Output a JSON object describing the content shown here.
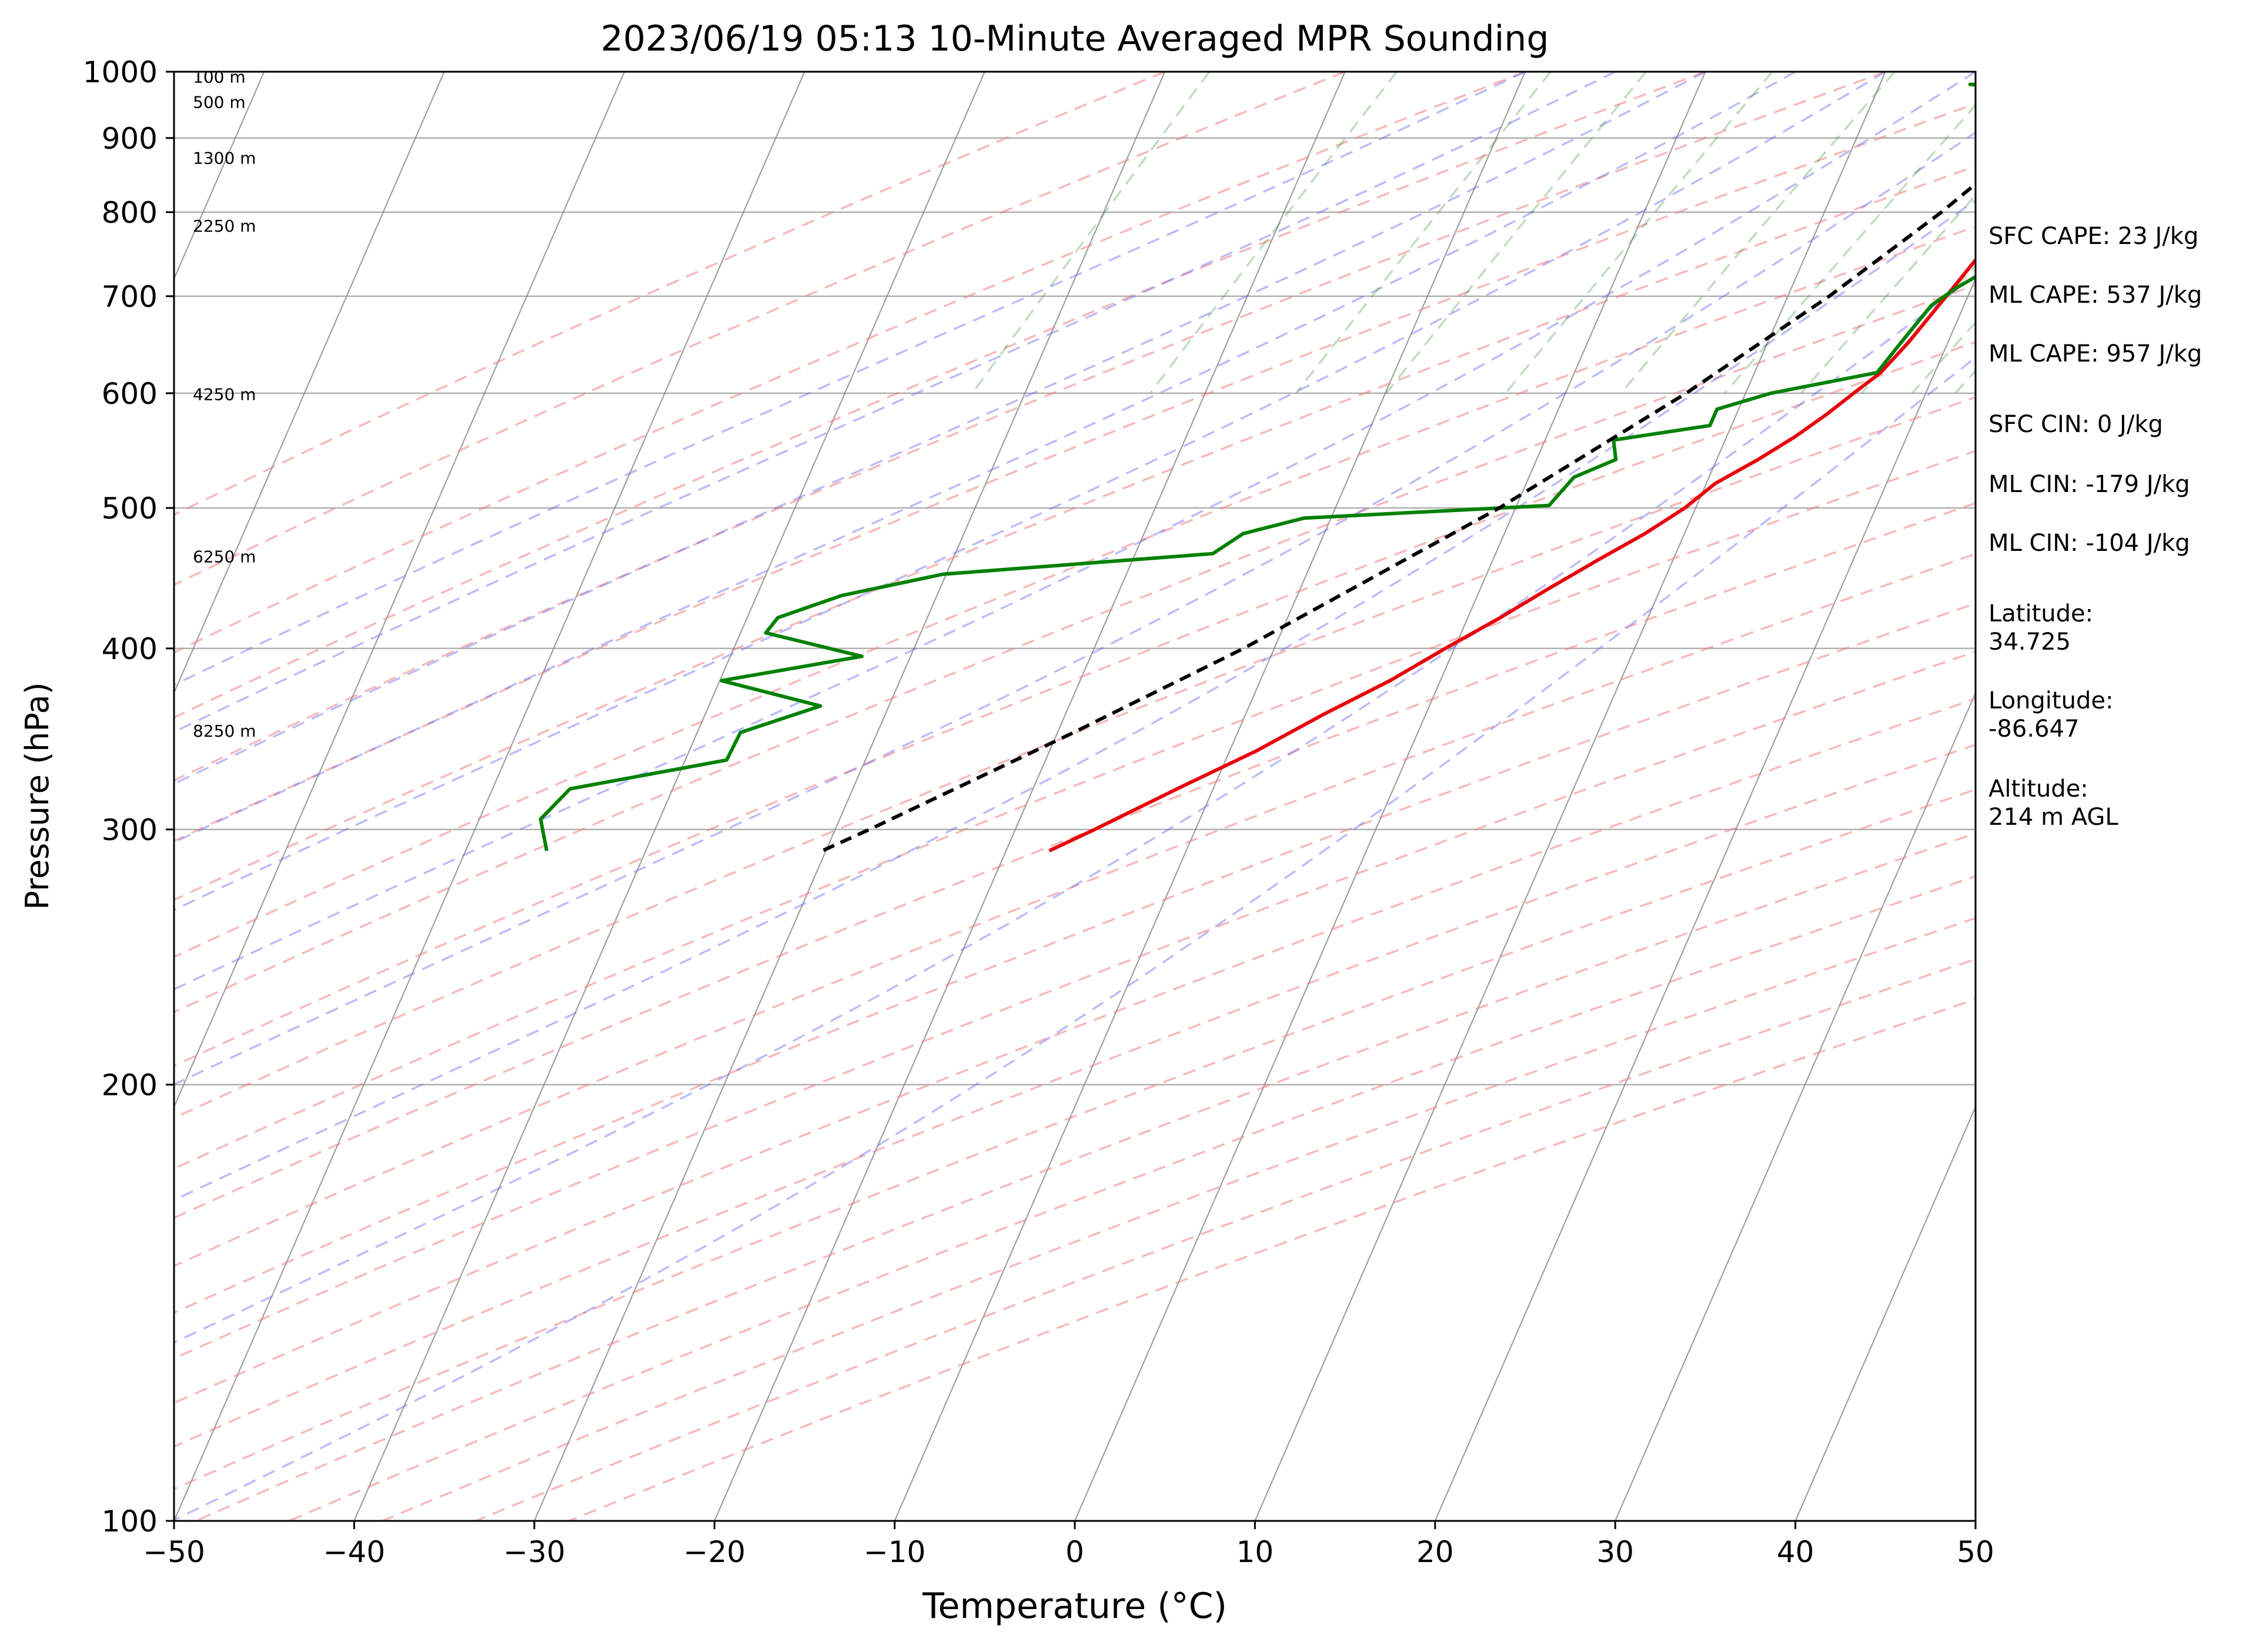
{
  "chart_data": {
    "type": "skew-t",
    "title": "2023/06/19 05:13 10-Minute Averaged MPR Sounding",
    "xlabel": "Temperature (°C)",
    "ylabel": "Pressure (hPa)",
    "xlim": [
      -50,
      50
    ],
    "ylim": [
      1000,
      100
    ],
    "x_ticks": [
      -50,
      -40,
      -30,
      -20,
      -10,
      0,
      10,
      20,
      30,
      40,
      50
    ],
    "x_tick_labels": [
      "−50",
      "−40",
      "−30",
      "−20",
      "−10",
      "0",
      "10",
      "20",
      "30",
      "40",
      "50"
    ],
    "y_ticks": [
      1000,
      900,
      800,
      700,
      600,
      500,
      400,
      300,
      200,
      100
    ],
    "y_tick_labels": [
      "1000",
      "900",
      "800",
      "700",
      "600",
      "500",
      "400",
      "300",
      "200",
      "100"
    ],
    "y_scale": "log",
    "grid": true,
    "height_labels": [
      {
        "text": "100 m",
        "p": 992
      },
      {
        "text": "500 m",
        "p": 953
      },
      {
        "text": "1300 m",
        "p": 872
      },
      {
        "text": "2250 m",
        "p": 783
      },
      {
        "text": "4250 m",
        "p": 599
      },
      {
        "text": "6250 m",
        "p": 463
      },
      {
        "text": "8250 m",
        "p": 351
      }
    ],
    "series": [
      {
        "role": "temperature",
        "color": "#e8000b",
        "points": [
          [
            1000,
            22.3
          ],
          [
            980,
            22.3
          ],
          [
            950,
            22
          ],
          [
            900,
            21.4
          ],
          [
            850,
            21
          ],
          [
            800,
            20.3
          ],
          [
            750,
            19.7
          ],
          [
            700,
            18.8
          ],
          [
            650,
            17.8
          ],
          [
            620,
            17
          ],
          [
            600,
            16
          ],
          [
            580,
            15
          ],
          [
            560,
            13.8
          ],
          [
            540,
            12.3
          ],
          [
            520,
            10.5
          ],
          [
            500,
            9.4
          ],
          [
            480,
            7.8
          ],
          [
            460,
            5.8
          ],
          [
            440,
            3.8
          ],
          [
            420,
            1.8
          ],
          [
            400,
            -0.5
          ],
          [
            380,
            -2.8
          ],
          [
            360,
            -5.7
          ],
          [
            340,
            -8.5
          ],
          [
            320,
            -12
          ],
          [
            300,
            -15.6
          ],
          [
            290,
            -17.6
          ]
        ]
      },
      {
        "role": "dewpoint",
        "color": "#008000",
        "points": [
          [
            985,
            22.3
          ],
          [
            980,
            15
          ],
          [
            968,
            22
          ],
          [
            955,
            26
          ],
          [
            940,
            28.3
          ],
          [
            925,
            29.4
          ],
          [
            905,
            29.3
          ],
          [
            890,
            28.7
          ],
          [
            870,
            28.1
          ],
          [
            855,
            28
          ],
          [
            830,
            27.3
          ],
          [
            800,
            25.8
          ],
          [
            770,
            23.7
          ],
          [
            740,
            21.1
          ],
          [
            710,
            19.2
          ],
          [
            690,
            18.2
          ],
          [
            670,
            17.8
          ],
          [
            645,
            17.3
          ],
          [
            620,
            16.8
          ],
          [
            600,
            11.4
          ],
          [
            585,
            8.8
          ],
          [
            570,
            8.8
          ],
          [
            557,
            3.8
          ],
          [
            540,
            4.4
          ],
          [
            525,
            2.5
          ],
          [
            502,
            1.8
          ],
          [
            492,
            -11.5
          ],
          [
            480,
            -14.5
          ],
          [
            465,
            -15.7
          ],
          [
            450,
            -30.2
          ],
          [
            435,
            -35.3
          ],
          [
            420,
            -38.3
          ],
          [
            410,
            -38.6
          ],
          [
            395,
            -32.7
          ],
          [
            380,
            -39.9
          ],
          [
            365,
            -33.8
          ],
          [
            350,
            -37.6
          ],
          [
            335,
            -37.7
          ],
          [
            320,
            -45.7
          ],
          [
            305,
            -46.6
          ],
          [
            290,
            -45.5
          ]
        ]
      },
      {
        "role": "parcel",
        "color": "#000000",
        "style": "dashed",
        "points": [
          [
            985,
            22.3
          ],
          [
            900,
            19.7
          ],
          [
            800,
            16.5
          ],
          [
            700,
            12.3
          ],
          [
            600,
            6.7
          ],
          [
            500,
            -0.9
          ],
          [
            400,
            -11.7
          ],
          [
            350,
            -19.1
          ],
          [
            300,
            -28.1
          ],
          [
            290,
            -30.2
          ]
        ]
      }
    ],
    "background_lines": {
      "isotherm_color": "#808080",
      "dry_adiabat_color": "#f08080",
      "moist_adiabat_color": "#6b6bf0",
      "mixing_ratio_color": "#2e8b2e"
    },
    "parameters": [
      "SFC CAPE: 23 J/kg",
      "ML CAPE: 537 J/kg",
      "ML CAPE: 957 J/kg",
      "SFC CIN: 0 J/kg",
      "ML CIN: -179 J/kg",
      "ML CIN: -104 J/kg"
    ],
    "location": {
      "latitude_label": "Latitude:",
      "latitude_value": "34.725",
      "longitude_label": "Longitude:",
      "longitude_value": "-86.647",
      "altitude_label": "Altitude:",
      "altitude_value": "214 m AGL"
    }
  }
}
